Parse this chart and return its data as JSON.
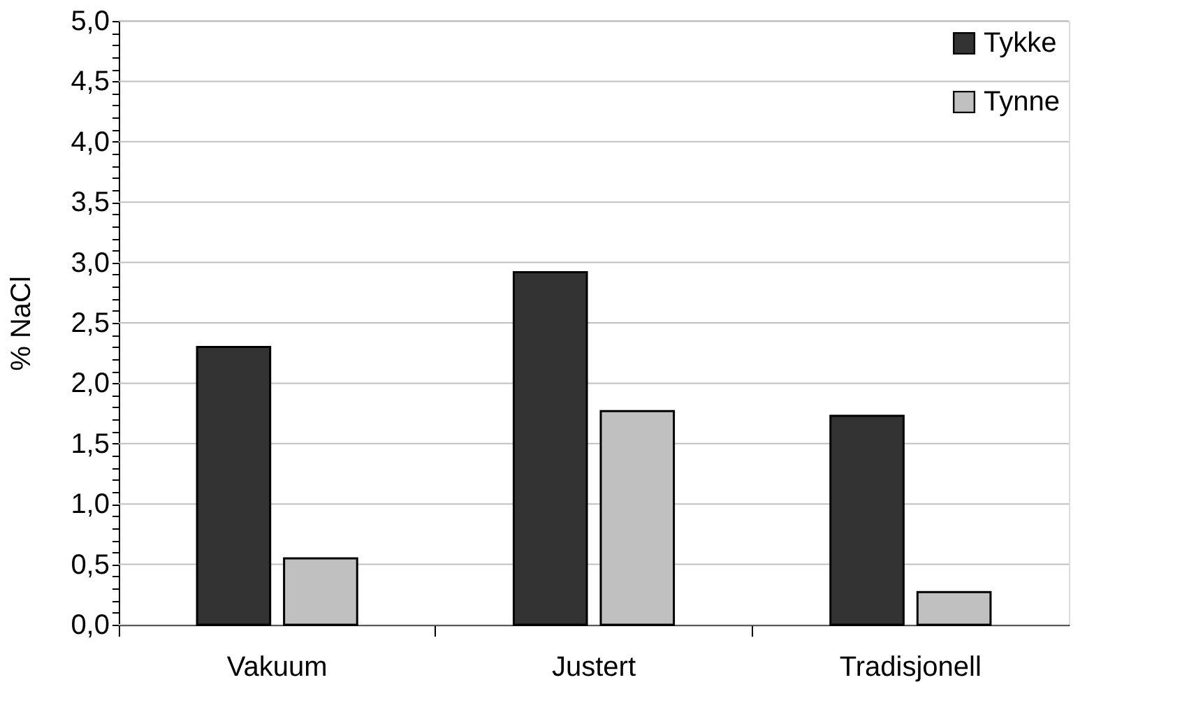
{
  "chart_data": {
    "type": "bar",
    "ylabel": "% NaCl",
    "categories": [
      "Vakuum",
      "Justert",
      "Tradisjonell"
    ],
    "series": [
      {
        "name": "Tykke",
        "color": "#333333",
        "values": [
          2.3,
          2.92,
          1.73
        ]
      },
      {
        "name": "Tynne",
        "color": "#c0c0c0",
        "values": [
          0.55,
          1.77,
          0.27
        ]
      }
    ],
    "ylim": [
      0,
      5
    ],
    "yticks": [
      {
        "value": 0,
        "label": "0,0"
      },
      {
        "value": 0.1,
        "label": null
      },
      {
        "value": 0.2,
        "label": null
      },
      {
        "value": 0.3,
        "label": null
      },
      {
        "value": 0.4,
        "label": null
      },
      {
        "value": 0.5,
        "label": "0,5"
      },
      {
        "value": 0.6,
        "label": null
      },
      {
        "value": 0.7,
        "label": null
      },
      {
        "value": 0.8,
        "label": null
      },
      {
        "value": 0.9,
        "label": null
      },
      {
        "value": 1,
        "label": "1,0"
      },
      {
        "value": 1.1,
        "label": null
      },
      {
        "value": 1.2,
        "label": null
      },
      {
        "value": 1.3,
        "label": null
      },
      {
        "value": 1.4,
        "label": null
      },
      {
        "value": 1.5,
        "label": "1,5"
      },
      {
        "value": 1.6,
        "label": null
      },
      {
        "value": 1.7,
        "label": null
      },
      {
        "value": 1.8,
        "label": null
      },
      {
        "value": 1.9,
        "label": null
      },
      {
        "value": 2,
        "label": "2,0"
      },
      {
        "value": 2.1,
        "label": null
      },
      {
        "value": 2.2,
        "label": null
      },
      {
        "value": 2.3,
        "label": null
      },
      {
        "value": 2.4,
        "label": null
      },
      {
        "value": 2.5,
        "label": "2,5"
      },
      {
        "value": 2.6,
        "label": null
      },
      {
        "value": 2.7,
        "label": null
      },
      {
        "value": 2.8,
        "label": null
      },
      {
        "value": 2.9,
        "label": null
      },
      {
        "value": 3,
        "label": "3,0"
      },
      {
        "value": 3.1,
        "label": null
      },
      {
        "value": 3.2,
        "label": null
      },
      {
        "value": 3.3,
        "label": null
      },
      {
        "value": 3.4,
        "label": null
      },
      {
        "value": 3.5,
        "label": "3,5"
      },
      {
        "value": 3.6,
        "label": null
      },
      {
        "value": 3.7,
        "label": null
      },
      {
        "value": 3.8,
        "label": null
      },
      {
        "value": 3.9,
        "label": null
      },
      {
        "value": 4,
        "label": "4,0"
      },
      {
        "value": 4.1,
        "label": null
      },
      {
        "value": 4.2,
        "label": null
      },
      {
        "value": 4.3,
        "label": null
      },
      {
        "value": 4.4,
        "label": null
      },
      {
        "value": 4.5,
        "label": "4,5"
      },
      {
        "value": 4.6,
        "label": null
      },
      {
        "value": 4.7,
        "label": null
      },
      {
        "value": 4.8,
        "label": null
      },
      {
        "value": 4.9,
        "label": null
      },
      {
        "value": 5,
        "label": "5,0"
      }
    ],
    "grid": "y",
    "legend": "top right"
  }
}
